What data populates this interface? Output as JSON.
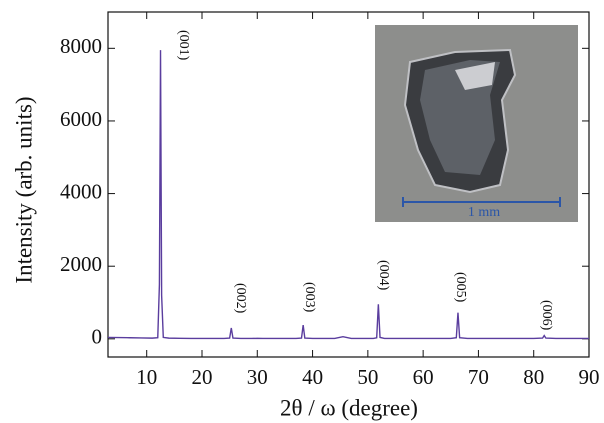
{
  "chart_data": {
    "type": "line",
    "x_label": "2θ / ω (degree)",
    "y_label": "Intensity (arb. units)",
    "x": [
      3,
      5,
      7,
      9,
      11,
      12,
      12.3,
      12.5,
      12.7,
      13,
      14,
      16,
      18,
      20,
      22,
      24,
      25,
      25.3,
      25.6,
      27,
      29,
      30,
      31,
      33,
      35,
      37,
      38,
      38.3,
      38.6,
      40,
      42,
      44,
      45.5,
      47,
      49,
      51,
      51.6,
      51.9,
      52.2,
      53,
      55,
      57,
      59,
      61,
      63,
      65,
      66,
      66.3,
      66.6,
      68,
      70,
      72,
      74,
      76,
      78,
      80,
      81.6,
      81.9,
      82.2,
      84,
      86,
      88,
      90
    ],
    "series": [
      {
        "color": "#5a3d9e",
        "values": [
          40,
          35,
          30,
          25,
          20,
          30,
          1500,
          7950,
          1200,
          40,
          20,
          15,
          10,
          10,
          10,
          10,
          20,
          300,
          20,
          10,
          10,
          15,
          10,
          10,
          10,
          10,
          20,
          380,
          20,
          10,
          10,
          10,
          60,
          10,
          10,
          10,
          30,
          950,
          40,
          10,
          10,
          10,
          10,
          10,
          10,
          10,
          30,
          720,
          30,
          10,
          10,
          10,
          10,
          10,
          10,
          10,
          20,
          90,
          20,
          10,
          10,
          10,
          10
        ]
      }
    ],
    "xlim": [
      3,
      90
    ],
    "xticks": [
      10,
      20,
      30,
      40,
      50,
      60,
      70,
      80,
      90
    ],
    "ylim": [
      -500,
      9000
    ],
    "yticks": [
      0,
      2000,
      4000,
      6000,
      8000
    ],
    "annotations": [
      "(001)",
      "(002)",
      "(003)",
      "(004)",
      "(005)",
      "(006)"
    ],
    "inset": {
      "scale_label": "1 mm"
    }
  }
}
